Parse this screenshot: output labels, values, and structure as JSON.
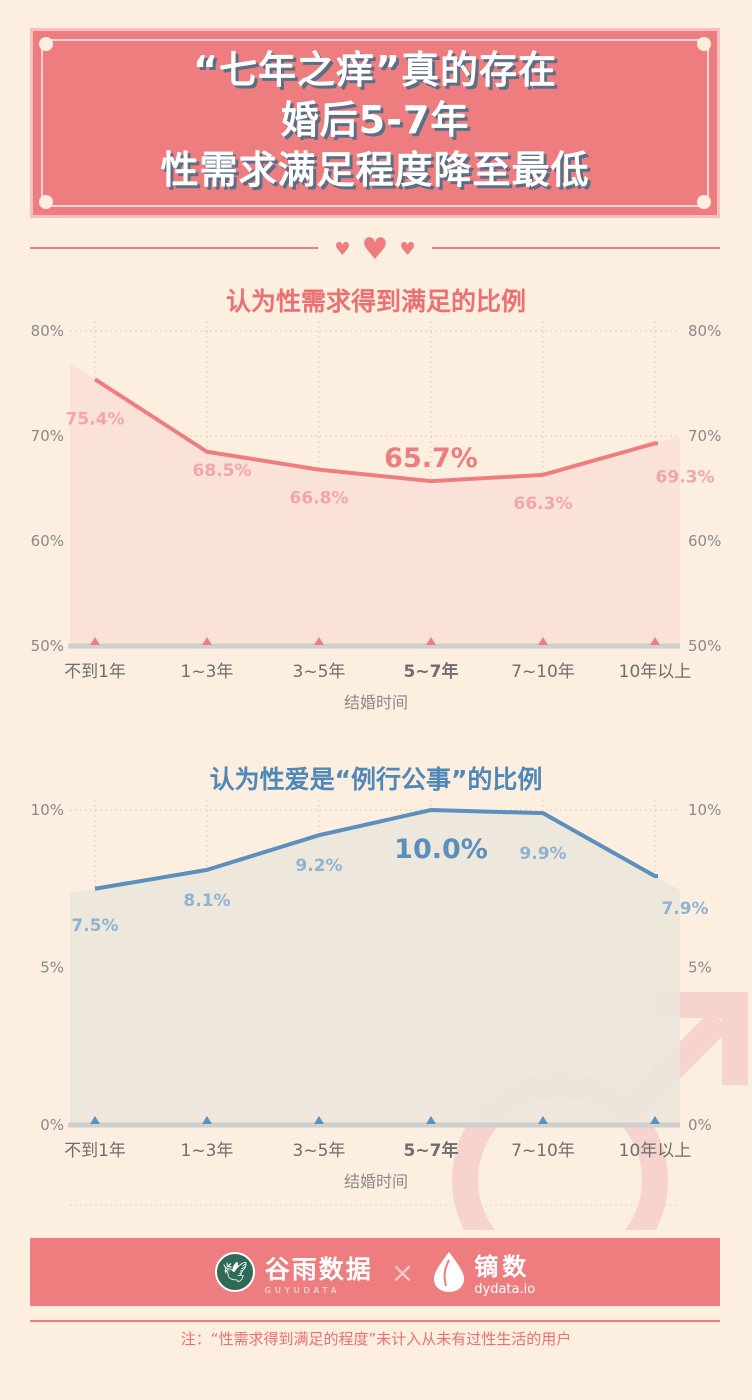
{
  "header": {
    "line1": "“七年之痒”真的存在",
    "line2": "婚后5-7年",
    "line3": "性需求满足程度降至最低"
  },
  "chart_data": [
    {
      "type": "area",
      "title": "认为性需求得到满足的比例",
      "xlabel": "结婚时间",
      "categories": [
        "不到1年",
        "1~3年",
        "3~5年",
        "5~7年",
        "7~10年",
        "10年以上"
      ],
      "values": [
        75.4,
        68.5,
        66.8,
        65.7,
        66.3,
        69.3
      ],
      "value_labels": [
        "75.4%",
        "68.5%",
        "66.8%",
        "65.7%",
        "66.3%",
        "69.3%"
      ],
      "highlight_index": 3,
      "yticks": [
        "80%",
        "70%",
        "60%",
        "50%"
      ],
      "ylim": [
        50,
        80
      ],
      "color": "#ee7d80",
      "fill": "#fbe0d8",
      "label_color": "#f1a7a6"
    },
    {
      "type": "area",
      "title": "认为性爱是“例行公事”的比例",
      "xlabel": "结婚时间",
      "categories": [
        "不到1年",
        "1~3年",
        "3~5年",
        "5~7年",
        "7~10年",
        "10年以上"
      ],
      "values": [
        7.5,
        8.1,
        9.2,
        10.0,
        9.9,
        7.9
      ],
      "value_labels": [
        "7.5%",
        "8.1%",
        "9.2%",
        "10.0%",
        "9.9%",
        "7.9%"
      ],
      "highlight_index": 3,
      "yticks": [
        "10%",
        "5%",
        "0%"
      ],
      "ylim": [
        0,
        10
      ],
      "color": "#5b8fbe",
      "fill": "#ece7db",
      "label_color": "#8fb3d4"
    }
  ],
  "footer": {
    "logo1_name": "谷雨数据",
    "logo1_sub": "GUYUDATA",
    "times": "×",
    "logo2_name": "镝数",
    "logo2_sub": "dydata.io"
  },
  "note": "注：“性需求得到满足的程度”未计入从未有过性生活的用户"
}
